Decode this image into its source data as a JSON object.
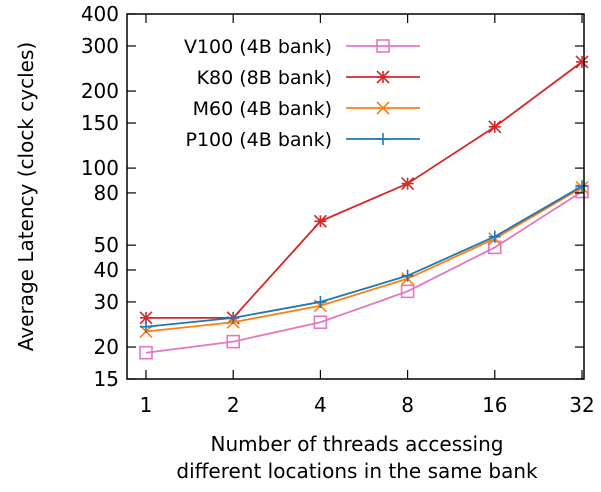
{
  "chart_data": {
    "type": "line",
    "title": "",
    "xlabel_lines": [
      "Number of threads accessing",
      "different locations in the same bank"
    ],
    "ylabel": "Average Latency (clock cycles)",
    "yscale": "log",
    "ylim": [
      15,
      400
    ],
    "yticks": [
      15,
      20,
      30,
      40,
      50,
      80,
      100,
      150,
      200,
      300,
      400
    ],
    "x": [
      "1",
      "2",
      "4",
      "8",
      "16",
      "32"
    ],
    "grid": false,
    "legend_position": "top-left",
    "series": [
      {
        "name": "V100 (4B bank)",
        "color": "#e377c2",
        "marker": "square-open",
        "values": [
          19,
          21,
          25,
          33,
          49,
          81
        ]
      },
      {
        "name": "K80 (8B bank)",
        "color": "#d62728",
        "marker": "asterisk",
        "values": [
          26,
          26,
          62,
          87,
          145,
          260
        ]
      },
      {
        "name": "M60 (4B bank)",
        "color": "#ff7f0e",
        "marker": "x",
        "values": [
          23,
          25,
          29,
          37,
          53,
          84
        ]
      },
      {
        "name": "P100 (4B bank)",
        "color": "#1f77b4",
        "marker": "plus",
        "values": [
          24,
          26,
          30,
          38,
          54,
          85
        ]
      }
    ]
  }
}
